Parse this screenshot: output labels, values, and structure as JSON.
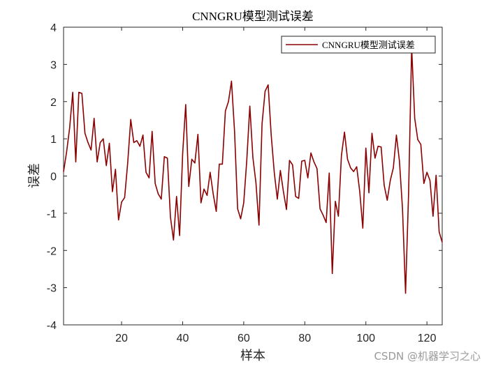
{
  "chart_data": {
    "type": "line",
    "title": "CNNGRU模型测试误差",
    "xlabel": "样本",
    "ylabel": "误差",
    "xlim": [
      1,
      125
    ],
    "ylim": [
      -4,
      4
    ],
    "xticks": [
      20,
      40,
      60,
      80,
      100,
      120
    ],
    "yticks": [
      -4,
      -3,
      -2,
      -1,
      0,
      1,
      2,
      3,
      4
    ],
    "legend_position": "top-right",
    "grid": false,
    "series": [
      {
        "name": "CNNGRU模型测试误差",
        "color": "#8b0000",
        "x": [
          1,
          2,
          3,
          4,
          5,
          6,
          7,
          8,
          9,
          10,
          11,
          12,
          13,
          14,
          15,
          16,
          17,
          18,
          19,
          20,
          21,
          22,
          23,
          24,
          25,
          26,
          27,
          28,
          29,
          30,
          31,
          32,
          33,
          34,
          35,
          36,
          37,
          38,
          39,
          40,
          41,
          42,
          43,
          44,
          45,
          46,
          47,
          48,
          49,
          50,
          51,
          52,
          53,
          54,
          55,
          56,
          57,
          58,
          59,
          60,
          61,
          62,
          63,
          64,
          65,
          66,
          67,
          68,
          69,
          70,
          71,
          72,
          73,
          74,
          75,
          76,
          77,
          78,
          79,
          80,
          81,
          82,
          83,
          84,
          85,
          86,
          87,
          88,
          89,
          90,
          91,
          92,
          93,
          94,
          95,
          96,
          97,
          98,
          99,
          100,
          101,
          102,
          103,
          104,
          105,
          106,
          107,
          108,
          109,
          110,
          111,
          112,
          113,
          114,
          115,
          116,
          117,
          118,
          119,
          120,
          121,
          122,
          123,
          124,
          125
        ],
        "y": [
          0.12,
          0.65,
          1.3,
          2.25,
          0.38,
          2.25,
          2.22,
          1.15,
          0.9,
          0.7,
          1.55,
          0.38,
          0.9,
          1.0,
          0.28,
          0.88,
          -0.42,
          0.18,
          -1.18,
          -0.7,
          -0.58,
          0.35,
          1.52,
          0.9,
          0.95,
          0.8,
          1.1,
          0.1,
          -0.05,
          1.2,
          -0.2,
          -0.48,
          -0.62,
          0.52,
          0.48,
          -1.1,
          -1.72,
          -0.55,
          -1.6,
          0.6,
          1.92,
          -0.28,
          0.45,
          0.35,
          1.12,
          -0.72,
          -0.35,
          -0.52,
          0.1,
          -0.48,
          -0.95,
          0.32,
          0.32,
          1.75,
          2.0,
          2.55,
          1.2,
          -0.88,
          -1.15,
          -0.72,
          0.42,
          1.88,
          0.5,
          -0.18,
          -1.32,
          1.4,
          2.28,
          2.45,
          1.1,
          0.1,
          -0.62,
          0.15,
          -0.42,
          -0.9,
          0.42,
          0.3,
          -0.55,
          -0.6,
          0.4,
          0.42,
          -0.05,
          0.62,
          0.38,
          0.2,
          -0.88,
          -1.05,
          -1.25,
          0.08,
          -2.62,
          -0.68,
          -1.08,
          0.55,
          1.18,
          0.45,
          0.22,
          0.12,
          0.25,
          -0.42,
          -1.4,
          0.75,
          -0.45,
          1.15,
          0.48,
          0.8,
          0.78,
          -0.25,
          -0.65,
          -0.12,
          0.22,
          1.1,
          0.4,
          -0.88,
          -3.15,
          -0.45,
          3.45,
          1.55,
          0.98,
          0.85,
          -0.2,
          0.1,
          -0.12,
          -1.08,
          0.02,
          -1.5,
          -1.78
        ]
      }
    ]
  },
  "watermark": "CSDN @机器学习之心"
}
